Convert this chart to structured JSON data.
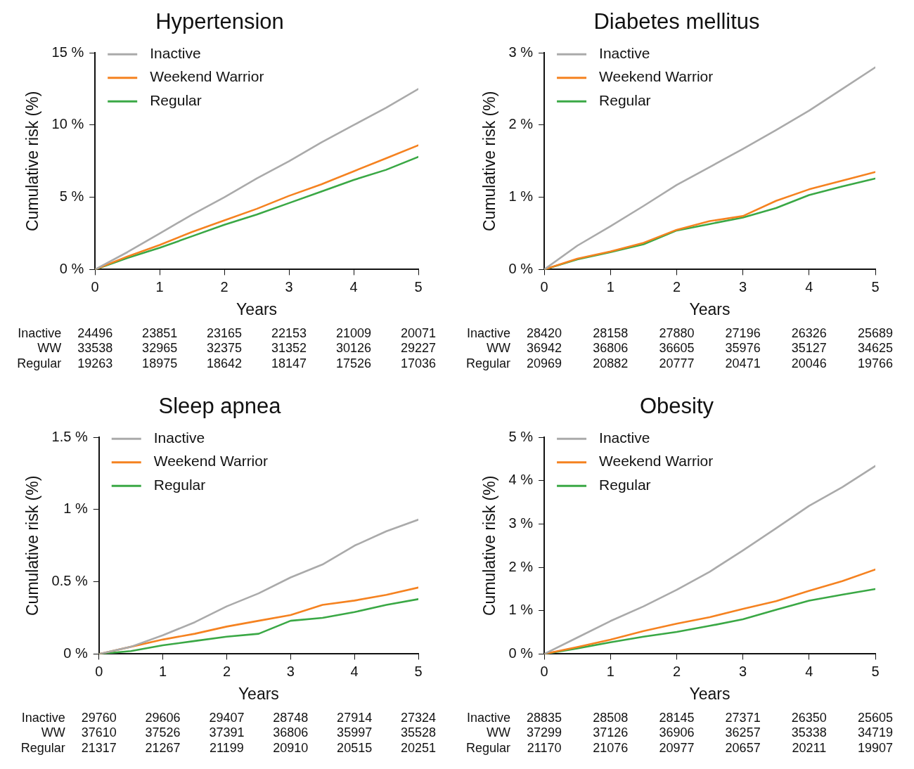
{
  "chart_data": [
    {
      "type": "line",
      "title": "Hypertension",
      "xlabel": "Years",
      "ylabel": "Cumulative risk (%)",
      "legend": "top left",
      "marker": "none",
      "grid": false,
      "x": [
        0,
        0.5,
        1,
        1.5,
        2,
        2.5,
        3,
        3.5,
        4,
        4.5,
        5
      ],
      "xlim": [
        0,
        5
      ],
      "xticks": [
        0,
        1,
        2,
        3,
        4,
        5
      ],
      "ylim": [
        0,
        15
      ],
      "yticks": [
        {
          "value": 0,
          "label": "0 %"
        },
        {
          "value": 5,
          "label": "5 %"
        },
        {
          "value": 10,
          "label": "10 %"
        },
        {
          "value": 15,
          "label": "15 %"
        }
      ],
      "series": [
        {
          "name": "Inactive",
          "color": "#aaaaaa",
          "values": [
            0,
            1.2,
            2.5,
            3.8,
            5.0,
            6.3,
            7.5,
            8.8,
            10.0,
            11.2,
            12.5
          ]
        },
        {
          "name": "Weekend Warrior",
          "color": "#f58220",
          "values": [
            0,
            0.9,
            1.7,
            2.6,
            3.4,
            4.2,
            5.1,
            5.9,
            6.8,
            7.7,
            8.6
          ]
        },
        {
          "name": "Regular",
          "color": "#3aa845",
          "values": [
            0,
            0.8,
            1.5,
            2.3,
            3.1,
            3.8,
            4.6,
            5.4,
            6.2,
            6.9,
            7.8
          ]
        }
      ],
      "annotations": [
        "Inactive\t24496\t23851\t23165\t22153\t21009\t20071",
        "WW\t33538\t32965\t32375\t31352\t30126\t29227",
        "Regular\t19263\t18975\t18642\t18147\t17526\t17036"
      ]
    },
    {
      "type": "line",
      "title": "Diabetes mellitus",
      "xlabel": "Years",
      "ylabel": "Cumulative risk (%)",
      "legend": "top left",
      "marker": "none",
      "grid": false,
      "x": [
        0,
        0.5,
        1,
        1.5,
        2,
        2.5,
        3,
        3.5,
        4,
        4.5,
        5
      ],
      "xlim": [
        0,
        5
      ],
      "xticks": [
        0,
        1,
        2,
        3,
        4,
        5
      ],
      "ylim": [
        0,
        3
      ],
      "yticks": [
        {
          "value": 0,
          "label": "0 %"
        },
        {
          "value": 1,
          "label": "1 %"
        },
        {
          "value": 2,
          "label": "2 %"
        },
        {
          "value": 3,
          "label": "3 %"
        }
      ],
      "series": [
        {
          "name": "Inactive",
          "color": "#aaaaaa",
          "values": [
            0,
            0.33,
            0.6,
            0.88,
            1.17,
            1.42,
            1.67,
            1.93,
            2.2,
            2.5,
            2.8
          ]
        },
        {
          "name": "Weekend Warrior",
          "color": "#f58220",
          "values": [
            0,
            0.15,
            0.25,
            0.37,
            0.55,
            0.67,
            0.74,
            0.95,
            1.11,
            1.23,
            1.35
          ]
        },
        {
          "name": "Regular",
          "color": "#3aa845",
          "values": [
            0,
            0.14,
            0.24,
            0.35,
            0.54,
            0.63,
            0.72,
            0.85,
            1.03,
            1.15,
            1.26
          ]
        }
      ],
      "annotations": [
        "Inactive\t28420\t28158\t27880\t27196\t26326\t25689",
        "WW\t36942\t36806\t36605\t35976\t35127\t34625",
        "Regular\t20969\t20882\t20777\t20471\t20046\t19766"
      ]
    },
    {
      "type": "line",
      "title": "Sleep apnea",
      "xlabel": "Years",
      "ylabel": "Cumulative risk (%)",
      "legend": "top left",
      "marker": "none",
      "grid": false,
      "x": [
        0,
        0.5,
        1,
        1.5,
        2,
        2.5,
        3,
        3.5,
        4,
        4.5,
        5
      ],
      "xlim": [
        0,
        5
      ],
      "xticks": [
        0,
        1,
        2,
        3,
        4,
        5
      ],
      "ylim": [
        0,
        1.5
      ],
      "yticks": [
        {
          "value": 0,
          "label": "0 %"
        },
        {
          "value": 0.5,
          "label": "0.5 %"
        },
        {
          "value": 1,
          "label": "1 %"
        },
        {
          "value": 1.5,
          "label": "1.5 %"
        }
      ],
      "series": [
        {
          "name": "Inactive",
          "color": "#aaaaaa",
          "values": [
            0,
            0.05,
            0.13,
            0.22,
            0.33,
            0.42,
            0.53,
            0.62,
            0.75,
            0.85,
            0.93
          ]
        },
        {
          "name": "Weekend Warrior",
          "color": "#f58220",
          "values": [
            0,
            0.05,
            0.1,
            0.14,
            0.19,
            0.23,
            0.27,
            0.34,
            0.37,
            0.41,
            0.46
          ]
        },
        {
          "name": "Regular",
          "color": "#3aa845",
          "values": [
            0,
            0.02,
            0.06,
            0.09,
            0.12,
            0.14,
            0.23,
            0.25,
            0.29,
            0.34,
            0.38
          ]
        }
      ],
      "annotations": [
        "Inactive\t29760\t29606\t29407\t28748\t27914\t27324",
        "WW\t37610\t37526\t37391\t36806\t35997\t35528",
        "Regular\t21317\t21267\t21199\t20910\t20515\t20251"
      ]
    },
    {
      "type": "line",
      "title": "Obesity",
      "xlabel": "Years",
      "ylabel": "Cumulative risk (%)",
      "legend": "top left",
      "marker": "none",
      "grid": false,
      "x": [
        0,
        0.5,
        1,
        1.5,
        2,
        2.5,
        3,
        3.5,
        4,
        4.5,
        5
      ],
      "xlim": [
        0,
        5
      ],
      "xticks": [
        0,
        1,
        2,
        3,
        4,
        5
      ],
      "ylim": [
        0,
        5
      ],
      "yticks": [
        {
          "value": 0,
          "label": "0 %"
        },
        {
          "value": 1,
          "label": "1 %"
        },
        {
          "value": 2,
          "label": "2 %"
        },
        {
          "value": 3,
          "label": "3 %"
        },
        {
          "value": 4,
          "label": "4 %"
        },
        {
          "value": 5,
          "label": "5 %"
        }
      ],
      "series": [
        {
          "name": "Inactive",
          "color": "#aaaaaa",
          "values": [
            0,
            0.38,
            0.76,
            1.1,
            1.48,
            1.9,
            2.39,
            2.9,
            3.42,
            3.85,
            4.34
          ]
        },
        {
          "name": "Weekend Warrior",
          "color": "#f58220",
          "values": [
            0,
            0.16,
            0.33,
            0.53,
            0.7,
            0.85,
            1.04,
            1.22,
            1.46,
            1.68,
            1.95
          ]
        },
        {
          "name": "Regular",
          "color": "#3aa845",
          "values": [
            0,
            0.13,
            0.27,
            0.4,
            0.51,
            0.65,
            0.8,
            1.02,
            1.23,
            1.37,
            1.5
          ]
        }
      ],
      "annotations": [
        "Inactive\t28835\t28508\t28145\t27371\t26350\t25605",
        "WW\t37299\t37126\t36906\t36257\t35338\t34719",
        "Regular\t21170\t21076\t20977\t20657\t20211\t19907"
      ]
    }
  ]
}
